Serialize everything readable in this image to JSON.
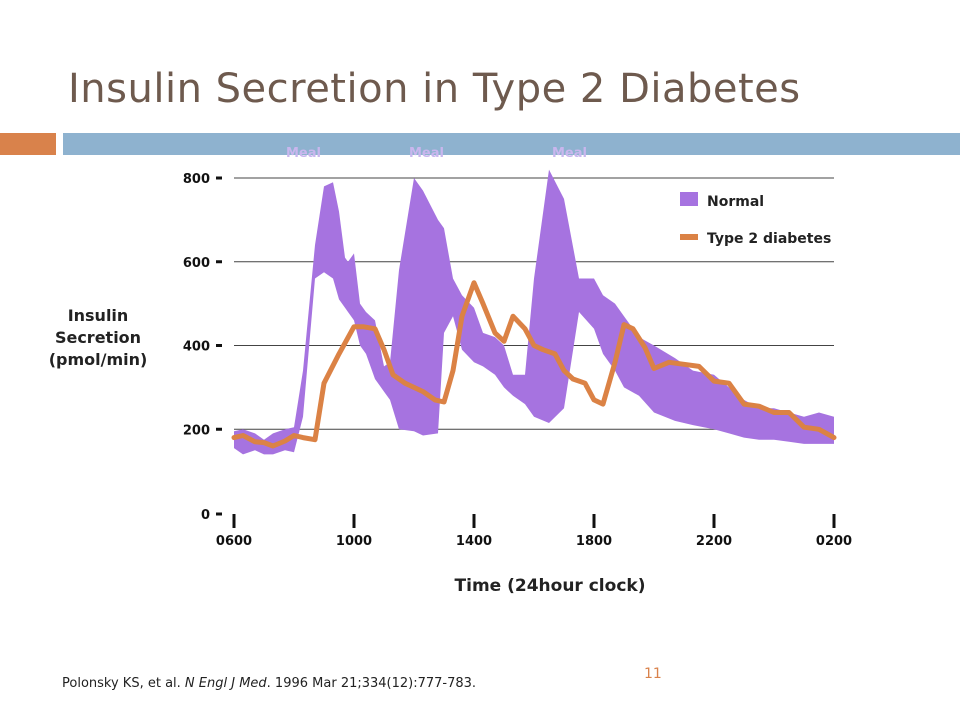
{
  "title": "Insulin Secretion in Type 2 Diabetes",
  "meals": [
    "Meal",
    "Meal",
    "Meal"
  ],
  "citation": {
    "authors": "Polonsky KS, et al.",
    "journal": "N Engl J Med",
    "details": ". 1996 Mar 21;334(12):777-783."
  },
  "page_number": "11",
  "colors": {
    "normal": "#a673e0",
    "type2": "#db8245",
    "accent_bar": "#d9824b",
    "title_bar": "#8eb2cf"
  },
  "chart_data": {
    "type": "area",
    "xlabel": "Time (24hour clock)",
    "ylabel": "Insulin\nSecretion\n(pmol/min)",
    "ylim": [
      0,
      800
    ],
    "y_ticks": [
      0,
      200,
      400,
      600,
      800
    ],
    "x_ticks": [
      "0600",
      "1000",
      "1400",
      "1800",
      "2200",
      "0200"
    ],
    "grid": true,
    "legend_position": "top-right",
    "series": [
      {
        "name": "Normal",
        "type": "band",
        "x": [
          6.0,
          6.3,
          6.7,
          7.0,
          7.3,
          7.7,
          8.0,
          8.3,
          8.7,
          9.0,
          9.3,
          9.5,
          9.7,
          9.8,
          10.0,
          10.2,
          10.4,
          10.7,
          11.0,
          11.2,
          11.5,
          12.0,
          12.3,
          12.8,
          13.0,
          13.3,
          13.6,
          14.0,
          14.3,
          14.7,
          15.0,
          15.3,
          15.7,
          16.0,
          16.5,
          17.0,
          17.5,
          18.0,
          18.3,
          18.7,
          19.0,
          19.5,
          20.0,
          20.7,
          21.3,
          22.0,
          22.5,
          23.0,
          23.5,
          24.0,
          24.5,
          25.0,
          25.5,
          26.0
        ],
        "upper": [
          195,
          200,
          190,
          175,
          190,
          200,
          205,
          340,
          640,
          780,
          790,
          720,
          610,
          600,
          620,
          500,
          480,
          460,
          350,
          360,
          580,
          800,
          770,
          700,
          680,
          560,
          520,
          490,
          430,
          420,
          400,
          330,
          330,
          560,
          820,
          750,
          560,
          560,
          520,
          500,
          470,
          420,
          400,
          370,
          340,
          330,
          300,
          270,
          250,
          250,
          240,
          230,
          240,
          230
        ],
        "lower": [
          155,
          140,
          150,
          140,
          140,
          150,
          145,
          230,
          560,
          575,
          560,
          510,
          490,
          480,
          460,
          400,
          380,
          320,
          290,
          270,
          200,
          195,
          185,
          190,
          430,
          470,
          390,
          360,
          350,
          330,
          300,
          280,
          260,
          230,
          215,
          250,
          480,
          440,
          380,
          340,
          300,
          280,
          240,
          220,
          210,
          200,
          190,
          180,
          175,
          175,
          170,
          165,
          165,
          165
        ]
      },
      {
        "name": "Type 2 diabetes",
        "type": "line",
        "x": [
          6.0,
          6.3,
          6.7,
          7.0,
          7.3,
          7.7,
          8.0,
          8.3,
          8.7,
          9.0,
          9.5,
          10.0,
          10.3,
          10.7,
          11.0,
          11.3,
          11.7,
          12.0,
          12.3,
          12.7,
          13.0,
          13.3,
          13.6,
          14.0,
          14.3,
          14.7,
          15.0,
          15.3,
          15.7,
          16.0,
          16.3,
          16.7,
          17.0,
          17.3,
          17.7,
          18.0,
          18.3,
          18.7,
          19.0,
          19.3,
          19.7,
          20.0,
          20.5,
          21.0,
          21.5,
          22.0,
          22.5,
          23.0,
          23.5,
          24.0,
          24.5,
          25.0,
          25.5,
          26.0
        ],
        "values": [
          180,
          185,
          170,
          168,
          160,
          172,
          185,
          180,
          175,
          310,
          380,
          445,
          445,
          440,
          390,
          330,
          310,
          300,
          290,
          270,
          265,
          340,
          470,
          550,
          500,
          430,
          410,
          470,
          440,
          400,
          390,
          380,
          340,
          320,
          310,
          270,
          260,
          360,
          450,
          440,
          395,
          345,
          360,
          355,
          350,
          315,
          310,
          260,
          255,
          240,
          240,
          205,
          200,
          180
        ]
      }
    ]
  }
}
